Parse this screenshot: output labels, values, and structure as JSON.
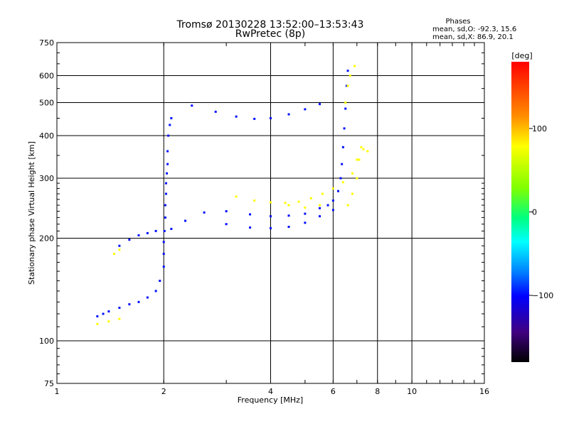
{
  "chart_data": {
    "type": "scatter",
    "title": "Tromsø 20130228 13:52:00–13:53:43",
    "subtitle": "RwPretec (8p)",
    "xlabel": "Frequency [MHz]",
    "ylabel": "Stationary phase Virtual Height [km]",
    "x_scale": "log",
    "y_scale": "log",
    "xlim": [
      1,
      16
    ],
    "ylim": [
      75,
      750
    ],
    "x_ticks": [
      1,
      2,
      4,
      6,
      8,
      10,
      16
    ],
    "y_ticks": [
      75,
      100,
      200,
      300,
      400,
      500,
      600,
      750
    ],
    "grid": true,
    "stats": {
      "title": "Phases",
      "line1": "mean, sd,O: -92.3, 15.6",
      "line2": "mean, sd,X:  86.9, 20.1"
    },
    "colorbar": {
      "label": "[deg]",
      "range": [
        -180,
        180
      ],
      "ticks": [
        100,
        0,
        -100
      ],
      "tick_labels": [
        "100",
        "0",
        "−100"
      ]
    },
    "series": [
      {
        "mode": "O",
        "color_value": -95,
        "points": [
          [
            1.3,
            118
          ],
          [
            1.35,
            120
          ],
          [
            1.4,
            122
          ],
          [
            1.5,
            125
          ],
          [
            1.6,
            128
          ],
          [
            1.7,
            130
          ],
          [
            1.8,
            134
          ],
          [
            1.9,
            140
          ],
          [
            1.95,
            150
          ],
          [
            2.0,
            165
          ],
          [
            2.0,
            180
          ],
          [
            2.0,
            195
          ],
          [
            2.01,
            210
          ],
          [
            2.02,
            230
          ],
          [
            2.02,
            250
          ],
          [
            2.03,
            270
          ],
          [
            2.03,
            290
          ],
          [
            2.04,
            310
          ],
          [
            2.05,
            330
          ],
          [
            2.05,
            360
          ],
          [
            2.06,
            400
          ],
          [
            2.08,
            430
          ],
          [
            2.1,
            450
          ],
          [
            1.5,
            190
          ],
          [
            1.6,
            198
          ],
          [
            1.7,
            204
          ],
          [
            1.8,
            207
          ],
          [
            1.9,
            210
          ],
          [
            2.1,
            213
          ],
          [
            2.3,
            225
          ],
          [
            2.6,
            238
          ],
          [
            3.0,
            240
          ],
          [
            3.5,
            235
          ],
          [
            4.0,
            232
          ],
          [
            4.5,
            233
          ],
          [
            5.0,
            236
          ],
          [
            5.5,
            245
          ],
          [
            5.8,
            250
          ],
          [
            6.0,
            258
          ],
          [
            6.2,
            275
          ],
          [
            6.3,
            300
          ],
          [
            6.35,
            330
          ],
          [
            6.4,
            370
          ],
          [
            6.45,
            420
          ],
          [
            6.5,
            480
          ],
          [
            6.55,
            560
          ],
          [
            6.6,
            620
          ],
          [
            2.4,
            490
          ],
          [
            2.8,
            470
          ],
          [
            3.2,
            455
          ],
          [
            3.6,
            448
          ],
          [
            4.0,
            450
          ],
          [
            4.5,
            462
          ],
          [
            5.0,
            478
          ],
          [
            5.5,
            495
          ],
          [
            3.0,
            220
          ],
          [
            3.5,
            215
          ],
          [
            4.0,
            214
          ],
          [
            4.5,
            216
          ],
          [
            5.0,
            222
          ],
          [
            5.5,
            232
          ],
          [
            6.0,
            242
          ]
        ]
      },
      {
        "mode": "X",
        "color_value": 90,
        "points": [
          [
            1.3,
            112
          ],
          [
            1.4,
            114
          ],
          [
            1.5,
            116
          ],
          [
            1.45,
            180
          ],
          [
            1.5,
            185
          ],
          [
            3.2,
            265
          ],
          [
            3.6,
            258
          ],
          [
            4.0,
            255
          ],
          [
            4.4,
            254
          ],
          [
            4.8,
            256
          ],
          [
            5.2,
            262
          ],
          [
            5.6,
            270
          ],
          [
            6.0,
            280
          ],
          [
            6.4,
            292
          ],
          [
            6.8,
            310
          ],
          [
            7.0,
            340
          ],
          [
            7.2,
            370
          ],
          [
            6.6,
            250
          ],
          [
            6.8,
            270
          ],
          [
            7.0,
            300
          ],
          [
            7.1,
            340
          ],
          [
            7.3,
            365
          ],
          [
            7.5,
            360
          ],
          [
            4.5,
            250
          ],
          [
            5.0,
            246
          ],
          [
            5.5,
            250
          ],
          [
            6.5,
            500
          ],
          [
            6.6,
            560
          ],
          [
            6.7,
            600
          ],
          [
            6.9,
            640
          ]
        ]
      }
    ]
  }
}
